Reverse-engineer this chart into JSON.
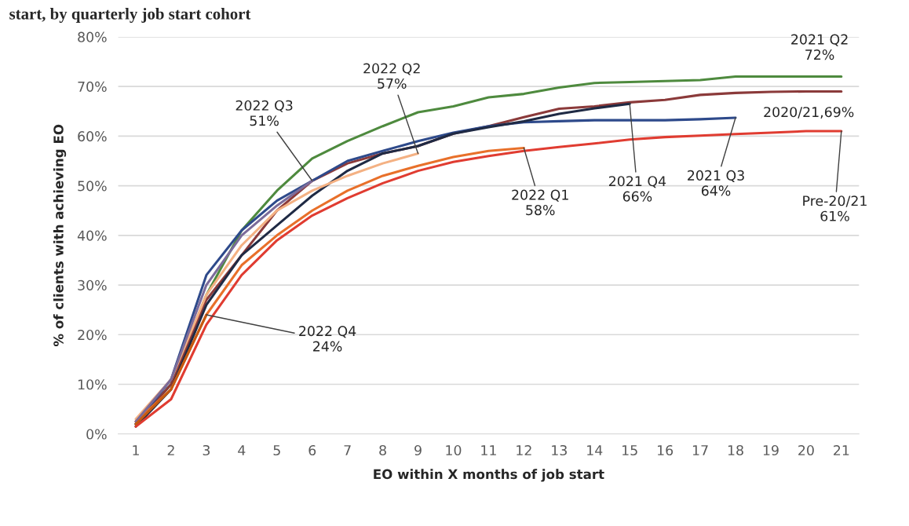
{
  "chart_data": {
    "type": "line",
    "title": "start, by quarterly job start cohort",
    "xlabel": "EO within X months of job start",
    "ylabel": "% of clients with achieving EO",
    "x": [
      1,
      2,
      3,
      4,
      5,
      6,
      7,
      8,
      9,
      10,
      11,
      12,
      13,
      14,
      15,
      16,
      17,
      18,
      19,
      20,
      21
    ],
    "xlim": [
      0.5,
      21.5
    ],
    "xticks": [
      1,
      2,
      3,
      4,
      5,
      6,
      7,
      8,
      9,
      10,
      11,
      12,
      13,
      14,
      15,
      16,
      17,
      18,
      19,
      20,
      21
    ],
    "ylim": [
      0,
      80
    ],
    "yticks": [
      {
        "value": 0,
        "label": "0%"
      },
      {
        "value": 10,
        "label": "10%"
      },
      {
        "value": 20,
        "label": "20%"
      },
      {
        "value": 30,
        "label": "30%"
      },
      {
        "value": 40,
        "label": "40%"
      },
      {
        "value": 50,
        "label": "50%"
      },
      {
        "value": 60,
        "label": "60%"
      },
      {
        "value": 70,
        "label": "70%"
      },
      {
        "value": 80,
        "label": "80%"
      }
    ],
    "grid": "y",
    "legend": false,
    "marker": "none",
    "line_style": "solid",
    "series": [
      {
        "color": "#4e8a3e",
        "values": [
          2,
          10,
          28,
          41,
          49,
          55.5,
          59,
          62,
          64.8,
          66,
          67.8,
          68.5,
          69.8,
          70.7,
          70.9,
          71.1,
          71.3,
          72,
          72,
          72,
          72
        ]
      },
      {
        "color": "#8b3a3a",
        "values": [
          2,
          10,
          27,
          36,
          45,
          51,
          54.5,
          56.5,
          58,
          60.5,
          62,
          63.8,
          65.5,
          66,
          66.8,
          67.3,
          68.3,
          68.7,
          68.9,
          69,
          69
        ]
      },
      {
        "color": "#2e4a8b",
        "values": [
          2,
          11,
          32,
          41,
          47,
          51,
          55,
          57,
          59,
          60.7,
          62,
          62.8,
          63,
          63.2,
          63.2,
          63.2,
          63.4,
          63.7,
          null,
          null,
          null
        ]
      },
      {
        "color": "#1f2a44",
        "values": [
          1.5,
          9,
          26,
          36,
          42,
          48,
          53,
          56.5,
          58,
          60.5,
          61.8,
          63,
          64.5,
          65.6,
          66.5,
          null,
          null,
          null,
          null,
          null,
          null
        ]
      },
      {
        "color": "#e03c31",
        "values": [
          1.5,
          7,
          22,
          32,
          39,
          44,
          47.5,
          50.5,
          53,
          54.8,
          56,
          57,
          57.8,
          58.5,
          59.3,
          59.8,
          60.1,
          60.4,
          60.7,
          61,
          61
        ]
      },
      {
        "color": "#e8702a",
        "values": [
          2.5,
          9,
          24,
          34,
          40,
          45,
          49,
          52,
          54,
          55.8,
          57,
          57.6,
          null,
          null,
          null,
          null,
          null,
          null,
          null,
          null,
          null
        ]
      },
      {
        "color": "#f4b183",
        "values": [
          3,
          11,
          28,
          38,
          45,
          49,
          52,
          54.5,
          56.5,
          null,
          null,
          null,
          null,
          null,
          null,
          null,
          null,
          null,
          null,
          null,
          null
        ]
      },
      {
        "color": "#7b6b9a",
        "values": [
          2.5,
          11,
          30,
          40,
          46,
          51,
          null,
          null,
          null,
          null,
          null,
          null,
          null,
          null,
          null,
          null,
          null,
          null,
          null,
          null,
          null
        ]
      },
      {
        "color": "#c55a11",
        "values": [
          2,
          9,
          24,
          null,
          null,
          null,
          null,
          null,
          null,
          null,
          null,
          null,
          null,
          null,
          null,
          null,
          null,
          null,
          null,
          null,
          null
        ]
      }
    ],
    "annotations": [
      {
        "text": "2021 Q2\n72%",
        "x": 21,
        "y": 72
      },
      {
        "text": "2020/21,69%",
        "x": 21,
        "y": 69
      },
      {
        "text": "Pre-20/21\n61%",
        "x": 21,
        "y": 61
      },
      {
        "text": "2021 Q3\n64%",
        "x": 18,
        "y": 63.7
      },
      {
        "text": "2021 Q4\n66%",
        "x": 15,
        "y": 66.5
      },
      {
        "text": "2022 Q1\n58%",
        "x": 12,
        "y": 57.6
      },
      {
        "text": "2022 Q2\n57%",
        "x": 9,
        "y": 56.5
      },
      {
        "text": "2022 Q3\n51%",
        "x": 6,
        "y": 51
      },
      {
        "text": "2022 Q4\n24%",
        "x": 3,
        "y": 24
      }
    ]
  }
}
